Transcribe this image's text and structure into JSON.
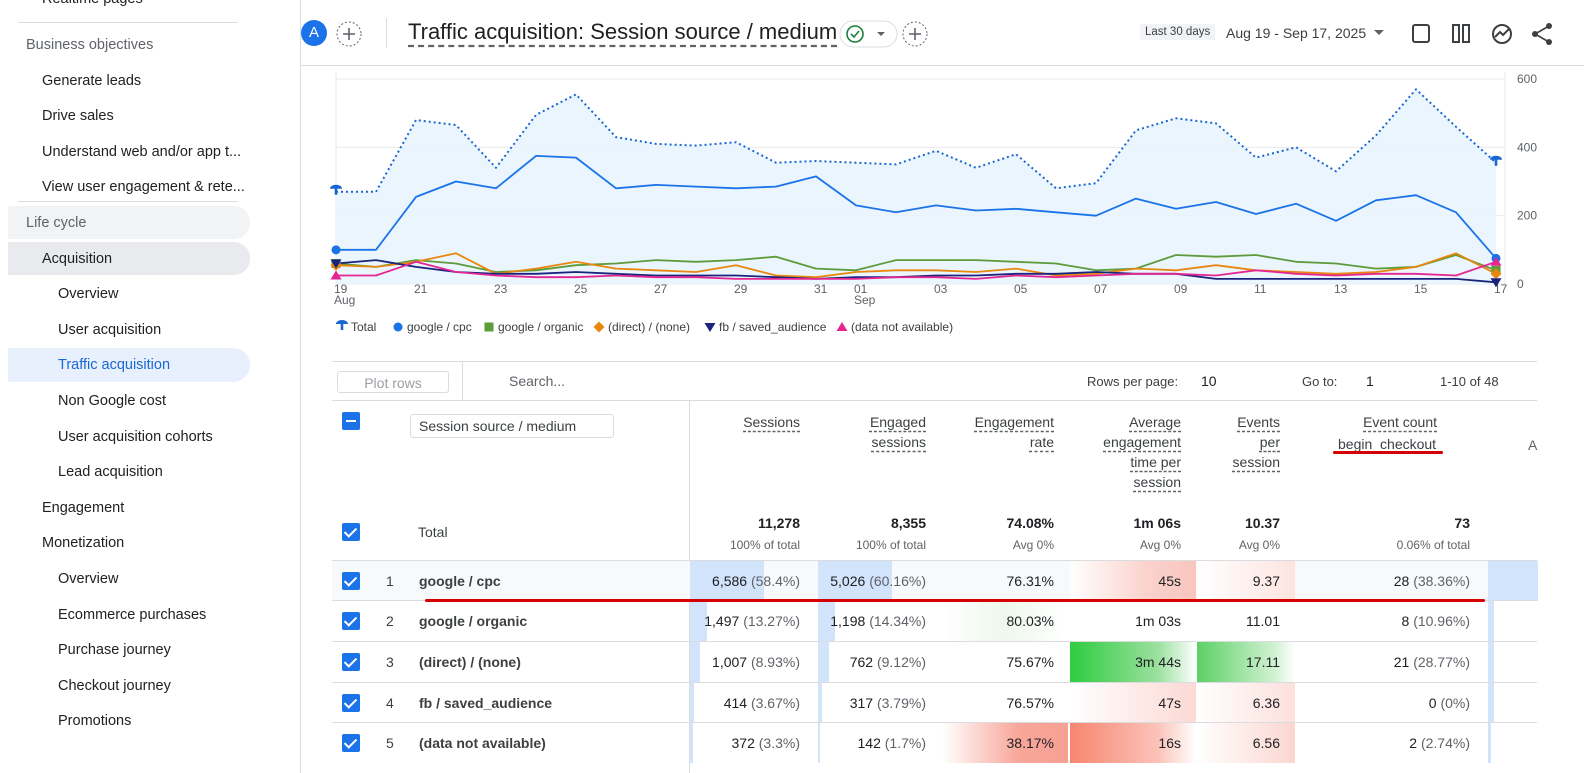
{
  "sidebar": {
    "top_item": "Realtime pages",
    "sections": [
      {
        "title": "Business objectives",
        "groups": [
          {
            "label": "Generate leads"
          },
          {
            "label": "Drive sales"
          },
          {
            "label": "Understand web and/or app t..."
          },
          {
            "label": "View user engagement & rete..."
          }
        ]
      },
      {
        "title": "Life cycle",
        "groups": [
          {
            "label": "Acquisition",
            "items": [
              "Overview",
              "User acquisition",
              "Traffic acquisition",
              "Non Google cost",
              "User acquisition cohorts",
              "Lead acquisition"
            ]
          },
          {
            "label": "Engagement"
          },
          {
            "label": "Monetization",
            "items": [
              "Overview",
              "Ecommerce purchases",
              "Purchase journey",
              "Checkout journey",
              "Promotions"
            ]
          }
        ]
      }
    ]
  },
  "header": {
    "avatar": "A",
    "title": "Traffic acquisition: Session source / medium",
    "date_preset": "Last 30 days",
    "date_range": "Aug 19 - Sep 17, 2025"
  },
  "chart": {
    "type": "line",
    "categories": [
      "19",
      null,
      "21",
      null,
      "23",
      null,
      "25",
      null,
      "27",
      null,
      "29",
      null,
      "31",
      "01",
      null,
      "03",
      null,
      "05",
      null,
      "07",
      null,
      "09",
      null,
      "11",
      null,
      "13",
      null,
      "15",
      null,
      "17"
    ],
    "months": [
      {
        "index": 0,
        "label": "Aug"
      },
      {
        "index": 13,
        "label": "Sep"
      }
    ],
    "ylim": [
      0,
      600
    ],
    "yticks": [
      0,
      200,
      400,
      600
    ],
    "grid": true,
    "series": [
      {
        "name": "Total",
        "color": "#1967d2",
        "values": [
          270,
          270,
          480,
          465,
          340,
          495,
          555,
          430,
          410,
          405,
          415,
          355,
          360,
          355,
          350,
          390,
          340,
          380,
          280,
          295,
          450,
          485,
          470,
          370,
          400,
          330,
          435,
          570,
          460,
          355
        ]
      },
      {
        "name": "google / cpc",
        "color": "#1a73e8",
        "values": [
          100,
          100,
          255,
          300,
          280,
          375,
          370,
          280,
          290,
          285,
          280,
          285,
          315,
          230,
          210,
          230,
          215,
          220,
          210,
          200,
          250,
          220,
          240,
          205,
          235,
          185,
          245,
          260,
          210,
          75
        ]
      },
      {
        "name": "google / organic",
        "color": "#5e9b3a",
        "values": [
          60,
          50,
          70,
          60,
          35,
          40,
          55,
          60,
          70,
          65,
          70,
          80,
          45,
          40,
          70,
          70,
          70,
          65,
          60,
          40,
          45,
          85,
          80,
          85,
          65,
          60,
          45,
          50,
          85,
          40
        ]
      },
      {
        "name": "(direct) / (none)",
        "color": "#e8870e",
        "values": [
          55,
          50,
          65,
          90,
          30,
          45,
          65,
          45,
          40,
          35,
          55,
          25,
          20,
          35,
          40,
          40,
          35,
          45,
          25,
          30,
          45,
          40,
          55,
          40,
          35,
          30,
          35,
          50,
          90,
          30
        ]
      },
      {
        "name": "fb / saved_audience",
        "color": "#1a237e",
        "values": [
          60,
          70,
          50,
          35,
          30,
          30,
          35,
          30,
          25,
          25,
          25,
          20,
          15,
          20,
          20,
          25,
          25,
          30,
          30,
          35,
          30,
          30,
          15,
          15,
          15,
          15,
          15,
          15,
          15,
          5
        ]
      },
      {
        "name": "(data not available)",
        "color": "#e52592",
        "values": [
          25,
          25,
          65,
          35,
          25,
          20,
          20,
          25,
          20,
          20,
          15,
          15,
          15,
          15,
          20,
          20,
          15,
          25,
          20,
          25,
          30,
          30,
          25,
          40,
          30,
          25,
          30,
          30,
          25,
          65
        ]
      }
    ]
  },
  "table": {
    "toolbar": {
      "plot_rows": "Plot rows",
      "search": "Search...",
      "rows_per_page_label": "Rows per page:",
      "rows_per_page": 10,
      "goto_label": "Go to:",
      "goto": 1,
      "range": "1-10 of 48"
    },
    "dimension": "Session source / medium",
    "columns": [
      {
        "label": "Sessions"
      },
      {
        "label": "Engaged sessions"
      },
      {
        "label": "Engagement rate"
      },
      {
        "label": "Average engagement time per session"
      },
      {
        "label": "Events per session"
      },
      {
        "label": "Event count",
        "event": "begin_checkout"
      }
    ],
    "partial_column": "A",
    "total": {
      "label": "Total",
      "values": [
        "11,278",
        "8,355",
        "74.08%",
        "1m 06s",
        "10.37",
        "73"
      ],
      "notes": [
        "100% of total",
        "100% of total",
        "Avg 0%",
        "Avg 0%",
        "Avg 0%",
        "0.06% of total"
      ]
    },
    "rows": [
      {
        "rank": 1,
        "name": "google / cpc",
        "cells": [
          {
            "value": "6,586",
            "share": "(58.4%)"
          },
          {
            "value": "5,026",
            "share": "(60.16%)"
          },
          {
            "value": "76.31%"
          },
          {
            "value": "45s"
          },
          {
            "value": "9.37"
          },
          {
            "value": "28",
            "share": "(38.36%)"
          }
        ]
      },
      {
        "rank": 2,
        "name": "google / organic",
        "cells": [
          {
            "value": "1,497",
            "share": "(13.27%)"
          },
          {
            "value": "1,198",
            "share": "(14.34%)"
          },
          {
            "value": "80.03%"
          },
          {
            "value": "1m 03s"
          },
          {
            "value": "11.01"
          },
          {
            "value": "8",
            "share": "(10.96%)"
          }
        ]
      },
      {
        "rank": 3,
        "name": "(direct) / (none)",
        "cells": [
          {
            "value": "1,007",
            "share": "(8.93%)"
          },
          {
            "value": "762",
            "share": "(9.12%)"
          },
          {
            "value": "75.67%"
          },
          {
            "value": "3m 44s"
          },
          {
            "value": "17.11"
          },
          {
            "value": "21",
            "share": "(28.77%)"
          }
        ]
      },
      {
        "rank": 4,
        "name": "fb / saved_audience",
        "cells": [
          {
            "value": "414",
            "share": "(3.67%)"
          },
          {
            "value": "317",
            "share": "(3.79%)"
          },
          {
            "value": "76.57%"
          },
          {
            "value": "47s"
          },
          {
            "value": "6.36"
          },
          {
            "value": "0",
            "share": "(0%)"
          }
        ]
      },
      {
        "rank": 5,
        "name": "(data not available)",
        "cells": [
          {
            "value": "372",
            "share": "(3.3%)"
          },
          {
            "value": "142",
            "share": "(1.7%)"
          },
          {
            "value": "38.17%"
          },
          {
            "value": "16s"
          },
          {
            "value": "6.56"
          },
          {
            "value": "2",
            "share": "(2.74%)"
          }
        ]
      }
    ]
  }
}
